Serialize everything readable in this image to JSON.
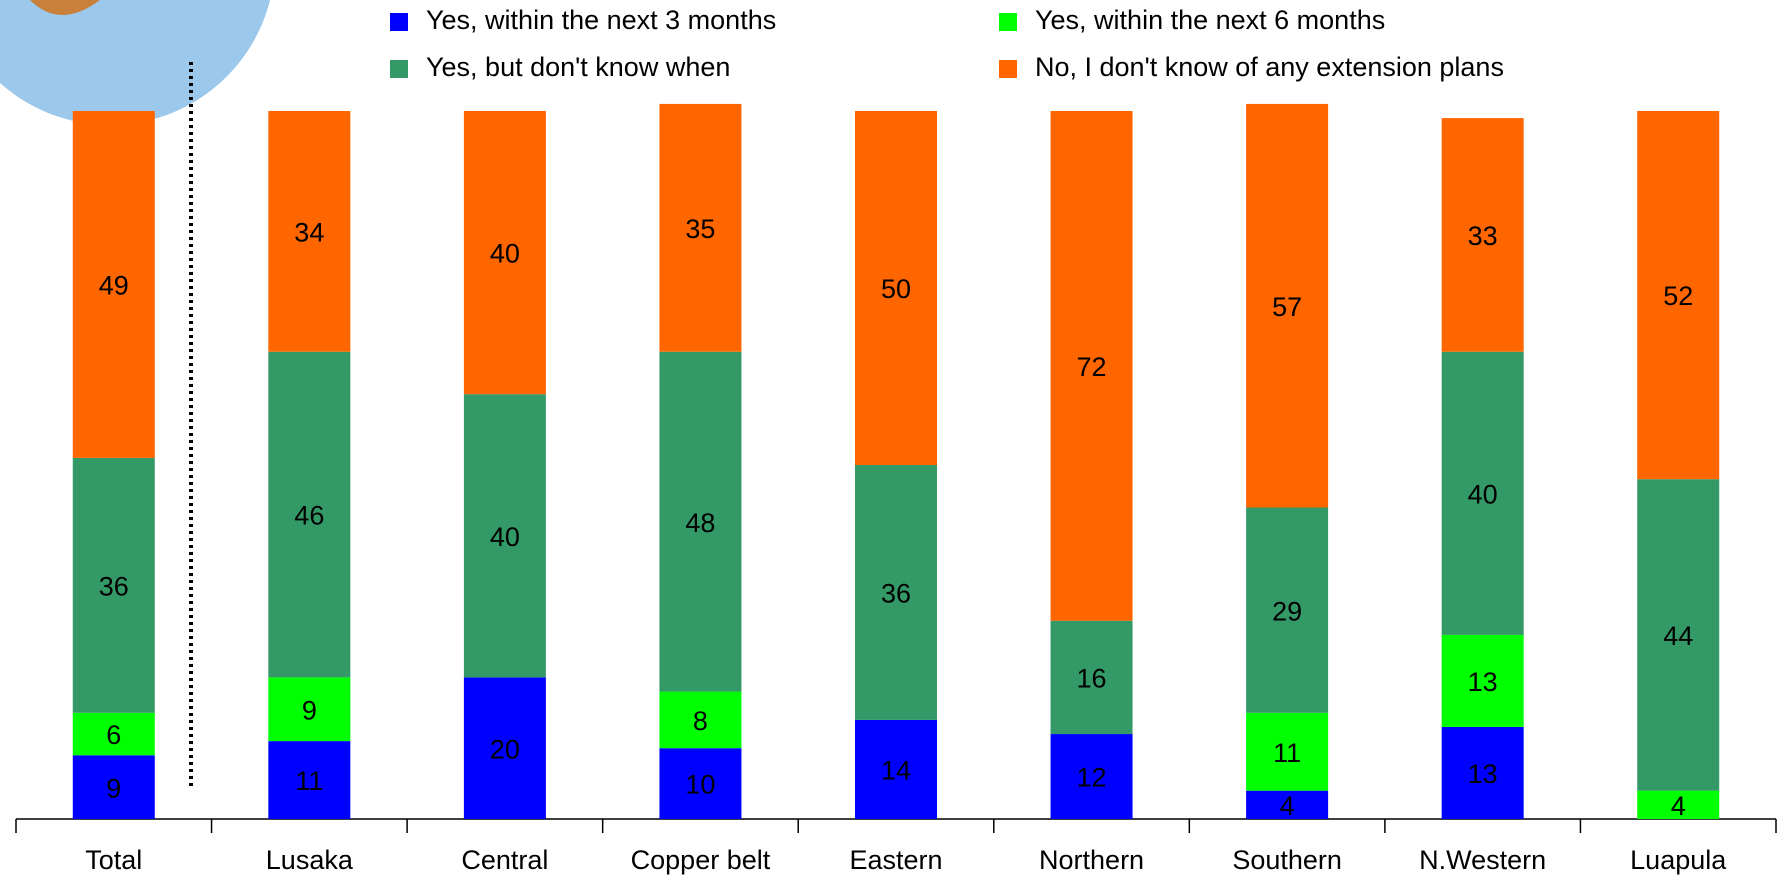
{
  "chart_data": {
    "type": "stacked_bar",
    "categories": [
      "Total",
      "Lusaka",
      "Central",
      "Copper belt",
      "Eastern",
      "Northern",
      "Southern",
      "N.Western",
      "Luapula"
    ],
    "series": [
      {
        "name": "Yes, within the next 3 months",
        "color": "#0000ff",
        "values": [
          9,
          11,
          20,
          10,
          14,
          12,
          4,
          13,
          null
        ]
      },
      {
        "name": "Yes, within the next 6 months",
        "color": "#00ff00",
        "values": [
          6,
          9,
          null,
          8,
          null,
          null,
          11,
          13,
          4
        ]
      },
      {
        "name": "Yes, but don't know when",
        "color": "#339966",
        "values": [
          36,
          46,
          40,
          48,
          36,
          16,
          29,
          40,
          44
        ]
      },
      {
        "name": "No, I don't know of any extension plans",
        "color": "#ff6600",
        "values": [
          49,
          34,
          40,
          35,
          50,
          72,
          57,
          33,
          52
        ]
      }
    ]
  }
}
